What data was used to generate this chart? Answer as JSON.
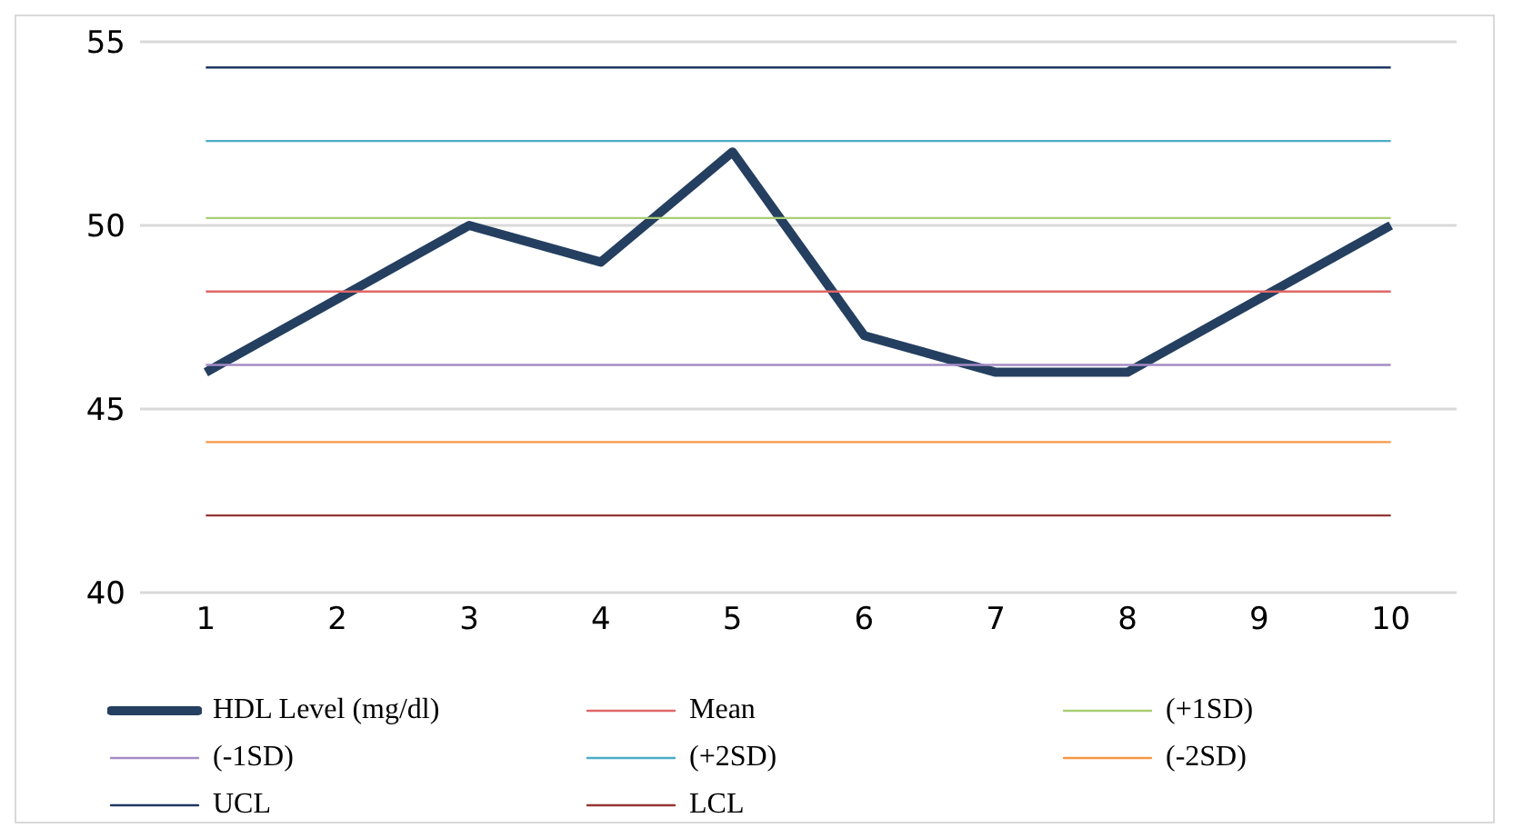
{
  "chart_data": {
    "type": "line",
    "categories": [
      "1",
      "2",
      "3",
      "4",
      "5",
      "6",
      "7",
      "8",
      "9",
      "10"
    ],
    "series": [
      {
        "name": "HDL Level (mg/dl)",
        "color": "#243f60",
        "values": [
          46,
          48,
          50,
          49,
          52,
          47,
          46,
          46,
          48,
          50
        ]
      },
      {
        "name": "Mean",
        "color": "#e06666",
        "values": [
          48.2,
          48.2,
          48.2,
          48.2,
          48.2,
          48.2,
          48.2,
          48.2,
          48.2,
          48.2
        ]
      },
      {
        "name": "(+1SD)",
        "color": "#a9cd74",
        "values": [
          50.2,
          50.2,
          50.2,
          50.2,
          50.2,
          50.2,
          50.2,
          50.2,
          50.2,
          50.2
        ]
      },
      {
        "name": "(-1SD)",
        "color": "#a58cc4",
        "values": [
          46.2,
          46.2,
          46.2,
          46.2,
          46.2,
          46.2,
          46.2,
          46.2,
          46.2,
          46.2
        ]
      },
      {
        "name": "(+2SD)",
        "color": "#4bacc6",
        "values": [
          52.3,
          52.3,
          52.3,
          52.3,
          52.3,
          52.3,
          52.3,
          52.3,
          52.3,
          52.3
        ]
      },
      {
        "name": "(-2SD)",
        "color": "#f79646",
        "values": [
          44.1,
          44.1,
          44.1,
          44.1,
          44.1,
          44.1,
          44.1,
          44.1,
          44.1,
          44.1
        ]
      },
      {
        "name": "UCL",
        "color": "#1f3864",
        "values": [
          54.3,
          54.3,
          54.3,
          54.3,
          54.3,
          54.3,
          54.3,
          54.3,
          54.3,
          54.3
        ]
      },
      {
        "name": "LCL",
        "color": "#943634",
        "values": [
          42.1,
          42.1,
          42.1,
          42.1,
          42.1,
          42.1,
          42.1,
          42.1,
          42.1,
          42.1
        ]
      }
    ],
    "ylim": [
      40,
      55
    ],
    "yticks": [
      40,
      45,
      50,
      55
    ],
    "grid": "y",
    "legend": "bottom",
    "marker": "none",
    "line_style": "solid"
  }
}
